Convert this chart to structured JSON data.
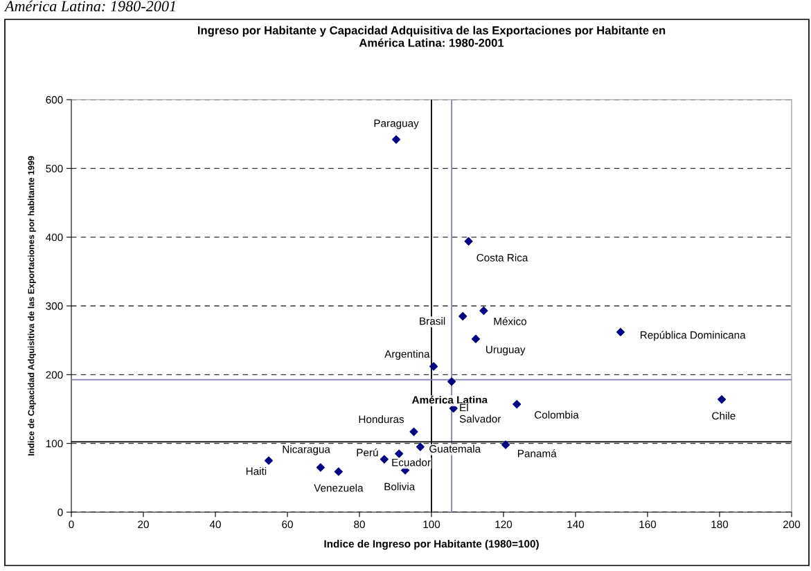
{
  "chart_data": {
    "type": "scatter",
    "title": "Ingreso por Habitante y Capacidad Adquisitiva de las Exportaciones por Habitante en\nAmérica Latina: 1980-2001",
    "xlabel": "Indice de Ingreso por Habitante (1980=100)",
    "ylabel": "Indice de Capacidad Adquisitiva de las Exportaciones por habitante 1999",
    "series": [
      {
        "color": "#000080",
        "x": [
          90.2,
          110.3,
          108.7,
          114.5,
          112.3,
          152.5,
          100.6,
          105.6,
          106.1,
          123.7,
          180.6,
          95.1,
          96.9,
          120.6,
          86.9,
          91.0,
          92.7,
          54.8,
          69.2,
          74.2
        ],
        "values": [
          542,
          394,
          285,
          293,
          252,
          262,
          212,
          190,
          151,
          157,
          164,
          117,
          95,
          98,
          77,
          85,
          61,
          75,
          65,
          59
        ]
      }
    ],
    "marker": "diamond",
    "xlim": [
      0,
      200
    ],
    "xticks": [
      0,
      20,
      40,
      60,
      80,
      100,
      120,
      140,
      160,
      180,
      200
    ],
    "ylim": [
      0,
      600
    ],
    "yticks": [
      0,
      100,
      200,
      300,
      400,
      500,
      600
    ],
    "grid": "y",
    "legend": false,
    "ref_lines": [
      {
        "axis": "x",
        "value": 100,
        "color": "#000000"
      },
      {
        "axis": "x",
        "value": 105.6,
        "color": "#8080b0"
      },
      {
        "axis": "y",
        "value": 192.6,
        "color": "#8080b0"
      },
      {
        "axis": "y",
        "value": 102.4,
        "color": "#000000"
      }
    ],
    "annotations": [
      "América Latina: 1980-2001",
      {
        "text": "Paraguay",
        "x": 90.2,
        "y": 542
      },
      {
        "text": "Costa Rica",
        "x": 110.3,
        "y": 394
      },
      {
        "text": "Brasil",
        "x": 108.7,
        "y": 285
      },
      {
        "text": "México",
        "x": 114.5,
        "y": 293
      },
      {
        "text": "Uruguay",
        "x": 112.3,
        "y": 252
      },
      {
        "text": "República Dominicana",
        "x": 152.5,
        "y": 262
      },
      {
        "text": "Argentina",
        "x": 100.6,
        "y": 212
      },
      {
        "text": "América Latina",
        "x": 105.6,
        "y": 190
      },
      {
        "text": "El\nSalvador",
        "x": 106.1,
        "y": 151
      },
      {
        "text": "Colombia",
        "x": 123.7,
        "y": 157
      },
      {
        "text": "Chile",
        "x": 180.6,
        "y": 164
      },
      {
        "text": "Honduras",
        "x": 95.1,
        "y": 117
      },
      {
        "text": "Guatemala",
        "x": 96.9,
        "y": 95
      },
      {
        "text": "Panamá",
        "x": 120.6,
        "y": 98
      },
      {
        "text": "Perú",
        "x": 86.9,
        "y": 77
      },
      {
        "text": "Ecuador",
        "x": 91.0,
        "y": 85
      },
      {
        "text": "Bolivia",
        "x": 92.7,
        "y": 61
      },
      {
        "text": "Haiti",
        "x": 54.8,
        "y": 75
      },
      {
        "text": "Nicaragua",
        "x": 69.2,
        "y": 65
      },
      {
        "text": "Venezuela",
        "x": 74.2,
        "y": 59
      }
    ]
  }
}
